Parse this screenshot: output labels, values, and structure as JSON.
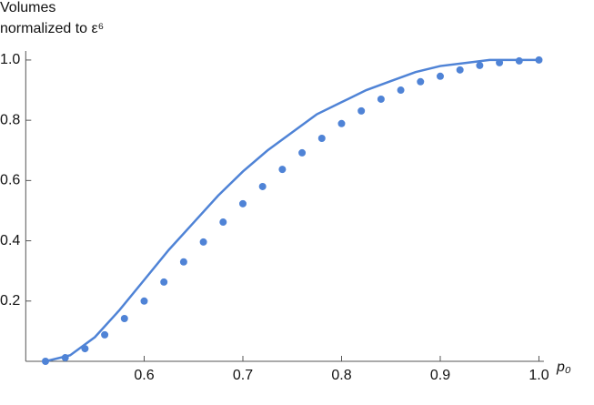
{
  "chart_data": {
    "type": "line",
    "y_label": [
      "Volumes",
      "normalized to ε⁶"
    ],
    "x_label": "p₀",
    "xlim": [
      0.48,
      1.005
    ],
    "ylim": [
      0,
      1.03
    ],
    "xticks": [
      0.6,
      0.7,
      0.8,
      0.9,
      {
        "value": 1,
        "label": "1.0"
      }
    ],
    "yticks": [
      0.2,
      0.4,
      0.6,
      0.8,
      {
        "value": 1,
        "label": "1.0"
      }
    ],
    "series": [
      {
        "type": "line",
        "color": "#4f83d6",
        "x": [
          0.5,
          0.525,
          0.55,
          0.575,
          0.6,
          0.625,
          0.65,
          0.675,
          0.7,
          0.725,
          0.75,
          0.775,
          0.8,
          0.825,
          0.85,
          0.875,
          0.9,
          0.925,
          0.95,
          0.975,
          1.0
        ],
        "values": [
          0,
          0.02,
          0.08,
          0.17,
          0.27,
          0.37,
          0.46,
          0.55,
          0.63,
          0.7,
          0.76,
          0.82,
          0.86,
          0.9,
          0.93,
          0.96,
          0.98,
          0.99,
          1.0,
          1.0,
          1.0
        ]
      },
      {
        "type": "scatter",
        "color": "#4f83d6",
        "x": [
          0.5,
          0.52,
          0.54,
          0.56,
          0.58,
          0.6,
          0.62,
          0.64,
          0.66,
          0.68,
          0.7,
          0.72,
          0.74,
          0.76,
          0.78,
          0.8,
          0.82,
          0.84,
          0.86,
          0.88,
          0.9,
          0.92,
          0.94,
          0.96,
          0.98,
          1.0
        ],
        "values": [
          0,
          0.012,
          0.042,
          0.088,
          0.142,
          0.2,
          0.263,
          0.33,
          0.396,
          0.462,
          0.523,
          0.58,
          0.637,
          0.692,
          0.74,
          0.789,
          0.831,
          0.87,
          0.9,
          0.928,
          0.946,
          0.967,
          0.982,
          0.991,
          0.997,
          1.0
        ]
      }
    ]
  }
}
